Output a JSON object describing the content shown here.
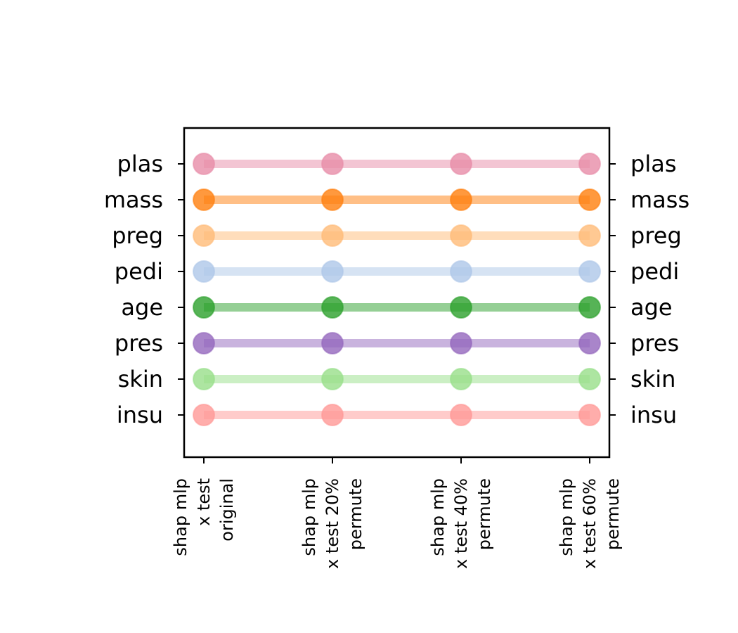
{
  "chart_data": {
    "type": "line",
    "title": "",
    "xlabel": "",
    "ylabel": "",
    "categories": [
      [
        "shap mlp",
        "x test",
        "original"
      ],
      [
        "shap mlp",
        "x test 20%",
        "permute"
      ],
      [
        "shap mlp",
        "x test 40%",
        "permute"
      ],
      [
        "shap mlp",
        "x test 60%",
        "permute"
      ]
    ],
    "y_axis_left": [
      "plas",
      "mass",
      "preg",
      "pedi",
      "age",
      "pres",
      "skin",
      "insu"
    ],
    "y_axis_right": [
      "plas",
      "mass",
      "preg",
      "pedi",
      "age",
      "pres",
      "skin",
      "insu"
    ],
    "grid": false,
    "legend": "none",
    "series": [
      {
        "name": "plas",
        "values": [
          1,
          1,
          1,
          1
        ],
        "color": "#e78ca8"
      },
      {
        "name": "mass",
        "values": [
          2,
          2,
          2,
          2
        ],
        "color": "#ff7f0e"
      },
      {
        "name": "preg",
        "values": [
          3,
          3,
          3,
          3
        ],
        "color": "#ffbb78"
      },
      {
        "name": "pedi",
        "values": [
          4,
          4,
          4,
          4
        ],
        "color": "#aec7e8"
      },
      {
        "name": "age",
        "values": [
          5,
          5,
          5,
          5
        ],
        "color": "#2ca02c"
      },
      {
        "name": "pres",
        "values": [
          6,
          6,
          6,
          6
        ],
        "color": "#9467bd"
      },
      {
        "name": "skin",
        "values": [
          7,
          7,
          7,
          7
        ],
        "color": "#98df8a"
      },
      {
        "name": "insu",
        "values": [
          8,
          8,
          8,
          8
        ],
        "color": "#ff9896"
      }
    ]
  }
}
